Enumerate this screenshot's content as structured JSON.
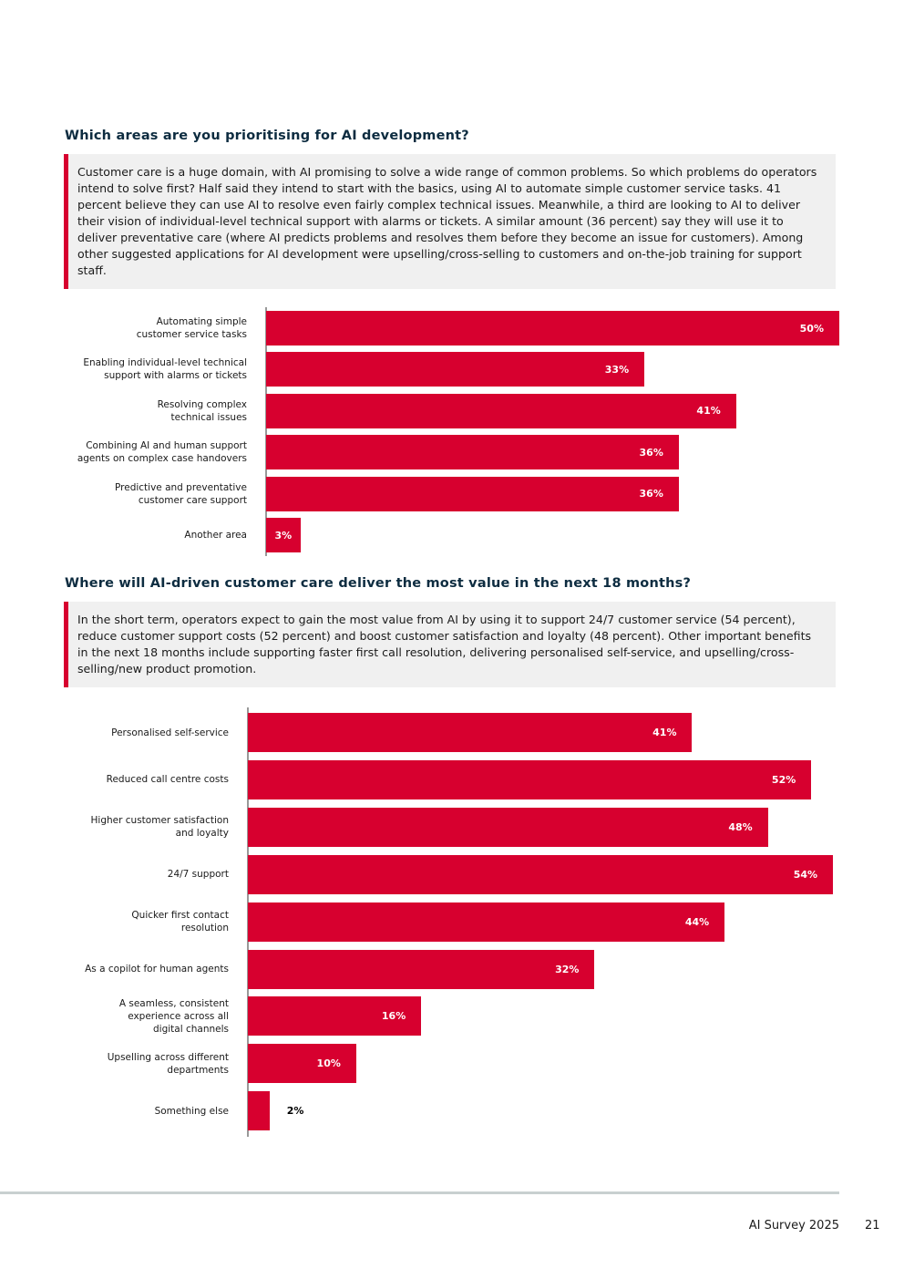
{
  "sections": [
    {
      "heading": "Which areas are you prioritising for AI development?",
      "body": "Customer care is a huge domain, with AI promising to solve a wide range of common problems. So which problems do operators intend to solve first? Half said they intend to start with the basics, using AI to automate simple customer service tasks. 41 percent believe they can use AI to resolve even fairly complex technical issues. Meanwhile, a third are looking to AI to deliver their vision of individual-level technical support with alarms or tickets. A similar amount (36 percent) say they will use it to deliver preventative care (where AI predicts problems and resolves them before they become an issue for customers). Among other suggested applications for AI development were upselling/cross-selling to customers and on-the-job training for support staff."
    },
    {
      "heading": "Where will AI-driven customer care deliver the most value in the next 18 months?",
      "body": "In the short term, operators expect to gain the most value from AI by using it to support 24/7 customer service (54 percent), reduce customer support costs (52 percent) and boost customer satisfaction and loyalty (48 percent). Other important benefits in the next 18 months include supporting faster first call resolution, delivering personalised self-service, and upselling/cross-selling/new product promotion."
    }
  ],
  "chart_data": [
    {
      "type": "bar",
      "orientation": "horizontal",
      "color": "#d7002f",
      "categories": [
        "Automating simple\ncustomer service tasks",
        "Enabling individual-level technical\nsupport with alarms or tickets",
        "Resolving complex\ntechnical issues",
        "Combining AI and human support\nagents on complex case handovers",
        "Predictive and preventative\ncustomer care support",
        "Another area"
      ],
      "values": [
        50,
        33,
        41,
        36,
        36,
        3
      ],
      "value_labels": [
        "50%",
        "33%",
        "41%",
        "36%",
        "36%",
        "3%"
      ]
    },
    {
      "type": "bar",
      "orientation": "horizontal",
      "color": "#d7002f",
      "categories": [
        "Personalised self-service",
        "Reduced call centre costs",
        "Higher customer satisfaction\nand loyalty",
        "24/7 support",
        "Quicker first contact\nresolution",
        "As a copilot for human agents",
        "A seamless, consistent\nexperience across all\ndigital channels",
        "Upselling across different\ndepartments",
        "Something else"
      ],
      "values": [
        41,
        52,
        48,
        54,
        44,
        32,
        16,
        10,
        2
      ],
      "value_labels": [
        "41%",
        "52%",
        "48%",
        "54%",
        "44%",
        "32%",
        "16%",
        "10%",
        "2%"
      ]
    }
  ],
  "footer": {
    "label": "AI Survey 2025",
    "page": "21"
  }
}
